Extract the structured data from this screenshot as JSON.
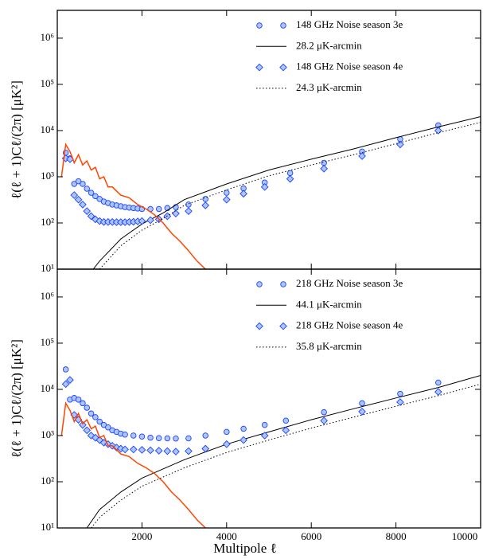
{
  "chart_data": [
    {
      "type": "line",
      "log_y": true,
      "legend": "upper right",
      "ylabel": "ℓ(ℓ + 1)Cℓ/(2π) [μK²]",
      "xlim": [
        0,
        10000
      ],
      "xticks": [
        2000,
        4000,
        6000,
        8000,
        10000
      ],
      "ylim": [
        10,
        4000000
      ],
      "yticks": [
        {
          "value": 10,
          "label": "10¹"
        },
        {
          "value": 100,
          "label": "10²"
        },
        {
          "value": 1000,
          "label": "10³"
        },
        {
          "value": 10000,
          "label": "10⁴"
        },
        {
          "value": 100000,
          "label": "10⁵"
        },
        {
          "value": 1000000,
          "label": "10⁶"
        }
      ],
      "series": [
        {
          "name": "148 GHz Noise season 3e",
          "color": "#1f3fff",
          "fill": "#aac8ff",
          "marker": "circle",
          "x": [
            200,
            300,
            400,
            500,
            600,
            700,
            800,
            900,
            1000,
            1100,
            1200,
            1300,
            1400,
            1500,
            1600,
            1700,
            1800,
            1900,
            2000,
            2200,
            2400,
            2600,
            2800,
            3100,
            3500,
            4000,
            4400,
            4900,
            5500,
            6300,
            7200,
            8100,
            9000
          ],
          "values": [
            3300,
            2500,
            700,
            800,
            700,
            550,
            450,
            380,
            330,
            290,
            270,
            250,
            240,
            230,
            220,
            215,
            210,
            205,
            200,
            200,
            200,
            210,
            220,
            250,
            330,
            450,
            560,
            750,
            1200,
            2000,
            3500,
            6500,
            13000
          ]
        },
        {
          "name": "28.2 μK-arcmin",
          "color": "#000000",
          "dash": "solid",
          "x": [
            850,
            1000,
            1500,
            2000,
            2500,
            3000,
            4000,
            5000,
            6000,
            7000,
            8000,
            9000,
            10000
          ],
          "values": [
            10,
            15,
            45,
            95,
            165,
            320,
            700,
            1400,
            2400,
            4000,
            7000,
            12000,
            20000
          ]
        },
        {
          "name": "148 GHz Noise season 4e",
          "color": "#1f3fff",
          "fill": "#aac8ff",
          "marker": "diamond",
          "x": [
            200,
            300,
            400,
            500,
            600,
            700,
            800,
            900,
            1000,
            1100,
            1200,
            1300,
            1400,
            1500,
            1600,
            1700,
            1800,
            1900,
            2000,
            2200,
            2400,
            2600,
            2800,
            3100,
            3500,
            4000,
            4400,
            4900,
            5500,
            6300,
            7200,
            8100,
            9000
          ],
          "values": [
            2500,
            2400,
            400,
            320,
            250,
            180,
            140,
            120,
            110,
            105,
            105,
            105,
            104,
            104,
            104,
            105,
            106,
            108,
            110,
            115,
            120,
            140,
            160,
            180,
            240,
            320,
            430,
            600,
            900,
            1500,
            2800,
            5000,
            10000
          ]
        },
        {
          "name": "24.3 μK-arcmin",
          "color": "#000000",
          "dash": "dotted",
          "x": [
            1000,
            1500,
            2000,
            2500,
            3000,
            4000,
            5000,
            6000,
            7000,
            8000,
            9000,
            10000
          ],
          "values": [
            10,
            32,
            70,
            125,
            240,
            520,
            1050,
            1800,
            3000,
            5200,
            9000,
            15000
          ]
        },
        {
          "color": "#ff4500",
          "dash": "solid",
          "x": [
            100,
            200,
            300,
            400,
            500,
            600,
            700,
            800,
            900,
            1000,
            1100,
            1200,
            1300,
            1500,
            1700,
            1900,
            2100,
            2300,
            2500,
            2700,
            2900,
            3100,
            3300,
            3500
          ],
          "values": [
            1000,
            5000,
            3500,
            2000,
            3000,
            1800,
            2200,
            1400,
            1600,
            900,
            1000,
            600,
            600,
            400,
            350,
            250,
            200,
            150,
            100,
            60,
            40,
            25,
            15,
            10
          ]
        }
      ]
    },
    {
      "type": "line",
      "log_y": true,
      "legend": "upper right",
      "ylabel": "ℓ(ℓ + 1)Cℓ/(2π) [μK²]",
      "xlabel": "Multipole ℓ",
      "xlim": [
        0,
        10000
      ],
      "xticks": [
        2000,
        4000,
        6000,
        8000,
        10000
      ],
      "ylim": [
        10,
        4000000
      ],
      "yticks": [
        {
          "value": 10,
          "label": "10¹"
        },
        {
          "value": 100,
          "label": "10²"
        },
        {
          "value": 1000,
          "label": "10³"
        },
        {
          "value": 10000,
          "label": "10⁴"
        },
        {
          "value": 100000,
          "label": "10⁵"
        },
        {
          "value": 1000000,
          "label": "10⁶"
        }
      ],
      "series": [
        {
          "name": "218 GHz Noise season 3e",
          "color": "#1f3fff",
          "fill": "#aac8ff",
          "marker": "circle",
          "x": [
            200,
            300,
            400,
            500,
            600,
            700,
            800,
            900,
            1000,
            1100,
            1200,
            1300,
            1400,
            1500,
            1600,
            1800,
            2000,
            2200,
            2400,
            2600,
            2800,
            3100,
            3500,
            4000,
            4400,
            4900,
            5400,
            6300,
            7200,
            8100,
            9000
          ],
          "values": [
            27000,
            6000,
            6500,
            6000,
            5000,
            4000,
            3000,
            2500,
            2000,
            1700,
            1500,
            1300,
            1200,
            1100,
            1050,
            1000,
            950,
            900,
            880,
            870,
            860,
            870,
            1000,
            1200,
            1400,
            1700,
            2100,
            3200,
            5000,
            8000,
            14000
          ]
        },
        {
          "name": "44.1 μK-arcmin",
          "color": "#000000",
          "dash": "solid",
          "x": [
            700,
            1000,
            1500,
            2000,
            3000,
            4000,
            5000,
            6000,
            7000,
            8000,
            9000,
            10000
          ],
          "values": [
            10,
            25,
            60,
            120,
            300,
            650,
            1200,
            2200,
            3800,
            6500,
            11000,
            20000
          ]
        },
        {
          "name": "218 GHz Noise season 4e",
          "color": "#1f3fff",
          "fill": "#aac8ff",
          "marker": "diamond",
          "x": [
            200,
            300,
            400,
            500,
            600,
            700,
            800,
            900,
            1000,
            1100,
            1200,
            1300,
            1400,
            1500,
            1600,
            1800,
            2000,
            2200,
            2400,
            2600,
            2800,
            3100,
            3500,
            4000,
            4400,
            4900,
            5400,
            6300,
            7200,
            8100,
            9000
          ],
          "values": [
            13000,
            16000,
            2800,
            2200,
            1700,
            1300,
            1000,
            900,
            800,
            700,
            650,
            600,
            550,
            520,
            500,
            500,
            490,
            480,
            470,
            460,
            450,
            460,
            520,
            650,
            800,
            1000,
            1300,
            2100,
            3300,
            5300,
            8800
          ]
        },
        {
          "name": "35.8 μK-arcmin",
          "color": "#000000",
          "dash": "dotted",
          "x": [
            800,
            1000,
            1500,
            2000,
            3000,
            4000,
            5000,
            6000,
            7000,
            8000,
            9000,
            10000
          ],
          "values": [
            10,
            17,
            40,
            80,
            200,
            430,
            800,
            1450,
            2500,
            4300,
            7300,
            13000
          ]
        },
        {
          "color": "#ff4500",
          "dash": "solid",
          "x": [
            100,
            200,
            300,
            400,
            500,
            600,
            700,
            800,
            900,
            1000,
            1100,
            1200,
            1300,
            1500,
            1700,
            1900,
            2100,
            2300,
            2500,
            2700,
            2900,
            3100,
            3300,
            3500
          ],
          "values": [
            1000,
            5000,
            3500,
            2000,
            3000,
            1800,
            2200,
            1400,
            1600,
            900,
            1000,
            600,
            600,
            400,
            350,
            250,
            200,
            150,
            100,
            60,
            40,
            25,
            15,
            10
          ]
        }
      ]
    }
  ]
}
